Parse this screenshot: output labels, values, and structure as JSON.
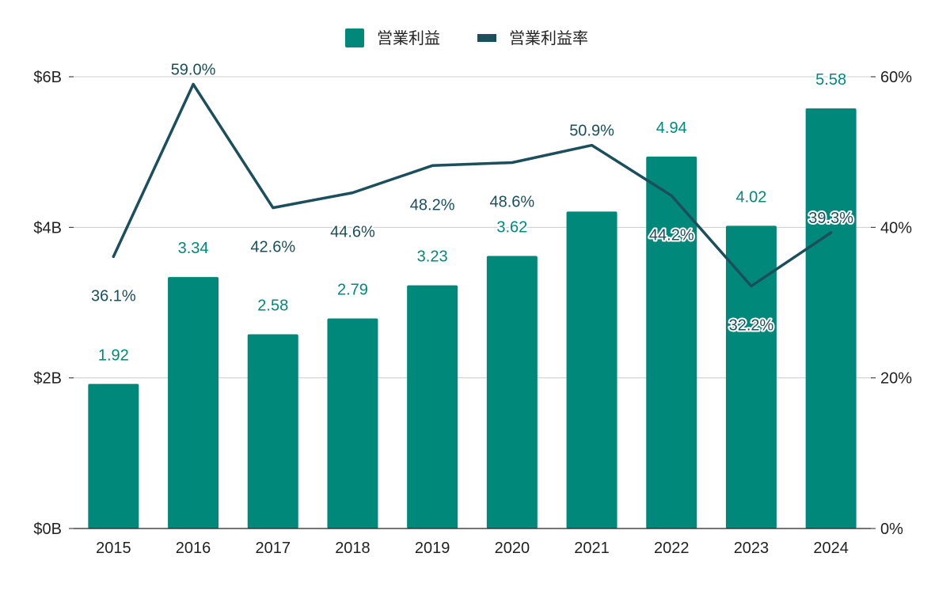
{
  "chart_data": {
    "type": "bar",
    "title": "",
    "xlabel": "",
    "ylabel": "",
    "categories": [
      "2015",
      "2016",
      "2017",
      "2018",
      "2019",
      "2020",
      "2021",
      "2022",
      "2023",
      "2024"
    ],
    "series": [
      {
        "name": "営業利益",
        "type": "bar",
        "axis": "left",
        "values": [
          1.92,
          3.34,
          2.58,
          2.79,
          3.23,
          3.62,
          4.21,
          4.94,
          4.02,
          5.58
        ],
        "labels": [
          "1.92",
          "3.34",
          "2.58",
          "2.79",
          "3.23",
          "3.62",
          "",
          "4.94",
          "4.02",
          "5.58"
        ],
        "color": "#00897B"
      },
      {
        "name": "営業利益率",
        "type": "line",
        "axis": "right",
        "values": [
          36.1,
          59.0,
          42.6,
          44.6,
          48.2,
          48.6,
          50.9,
          44.2,
          32.2,
          39.3
        ],
        "labels": [
          "36.1%",
          "59.0%",
          "42.6%",
          "44.6%",
          "48.2%",
          "48.6%",
          "50.9%",
          "44.2%",
          "32.2%",
          "39.3%"
        ],
        "color": "#1B4F5C"
      }
    ],
    "y_left": {
      "ylim": [
        0,
        6
      ],
      "ticks": [
        0,
        2,
        4,
        6
      ],
      "tick_labels": [
        "$0B",
        "$2B",
        "$4B",
        "$6B"
      ]
    },
    "y_right": {
      "ylim": [
        0,
        60
      ],
      "ticks": [
        0,
        20,
        40,
        60
      ],
      "tick_labels": [
        "0%",
        "20%",
        "40%",
        "60%"
      ]
    },
    "grid": true,
    "legend_position": "top-center",
    "colors": {
      "grid": "#CCCCCC",
      "axis": "#222222",
      "bar_label": "#00897B",
      "rate_label": "#1B4F5C",
      "label_halo": "#FFFFFF"
    }
  }
}
